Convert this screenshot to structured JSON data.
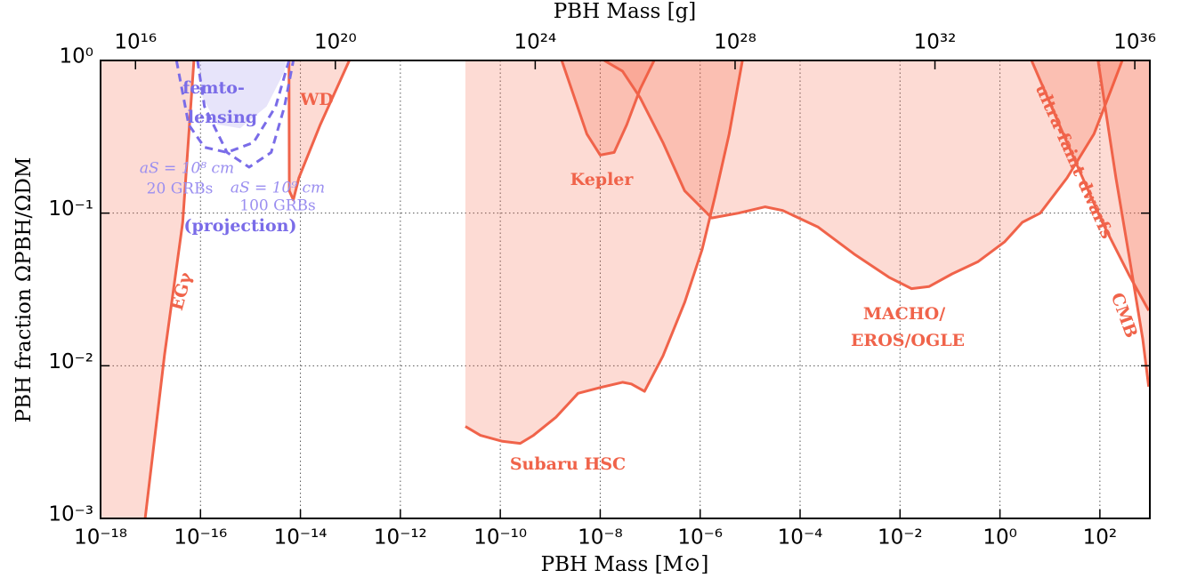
{
  "chart_data": {
    "type": "line",
    "xlabel": "PBH Mass [M⊙]",
    "x2label": "PBH Mass [g]",
    "ylabel": "PBH fraction ΩPBH/ΩDM",
    "xscale": "log",
    "yscale": "log",
    "grid": true,
    "xlim": [
      1e-18,
      1000.0
    ],
    "xticks": [
      {
        "value": 1e-18,
        "label": "10⁻¹⁸"
      },
      {
        "value": 1e-16,
        "label": "10⁻¹⁶"
      },
      {
        "value": 1e-14,
        "label": "10⁻¹⁴"
      },
      {
        "value": 1e-12,
        "label": "10⁻¹²"
      },
      {
        "value": 1e-10,
        "label": "10⁻¹⁰"
      },
      {
        "value": 1e-08,
        "label": "10⁻⁸"
      },
      {
        "value": 1e-06,
        "label": "10⁻⁶"
      },
      {
        "value": 0.0001,
        "label": "10⁻⁴"
      },
      {
        "value": 0.01,
        "label": "10⁻²"
      },
      {
        "value": 1,
        "label": "10⁰"
      },
      {
        "value": 100,
        "label": "10²"
      }
    ],
    "x2lim": [
      2000000000000000.0,
      2e+36
    ],
    "x2ticks": [
      {
        "value": 1e+16,
        "label": "10¹⁶"
      },
      {
        "value": 1e+20,
        "label": "10²⁰"
      },
      {
        "value": 1e+24,
        "label": "10²⁴"
      },
      {
        "value": 1e+28,
        "label": "10²⁸"
      },
      {
        "value": 1e+32,
        "label": "10³²"
      },
      {
        "value": 1e+36,
        "label": "10³⁶"
      }
    ],
    "ylim": [
      0.001,
      1
    ],
    "yticks": [
      {
        "value": 0.001,
        "label": "10⁻³"
      },
      {
        "value": 0.01,
        "label": "10⁻²"
      },
      {
        "value": 0.1,
        "label": "10⁻¹"
      },
      {
        "value": 1,
        "label": "10⁰"
      }
    ],
    "series": [
      {
        "color": "#f0634a",
        "fill": "#f4593d",
        "fill_to": "left",
        "line_style": "solid",
        "x": [
          7.8e-18,
          1.9e-17,
          4.4e-17,
          7.4e-17
        ],
        "values": [
          0.001,
          0.0117,
          0.087,
          1
        ]
      },
      {
        "color": "#f0634a",
        "fill": "#f4593d",
        "fill_to": "top",
        "line_style": "solid",
        "x": [
          5.9e-15,
          6e-15,
          7.2e-15,
          9.3e-15,
          2.5e-14,
          9.5e-14
        ],
        "values": [
          1,
          0.14,
          0.122,
          0.17,
          0.38,
          1
        ]
      },
      {
        "color": "#e8e6fb",
        "fill": "#cfcaf6",
        "fill_to": "top",
        "line_style": "none",
        "x": [
          8.7e-17,
          1.1e-16,
          2.2e-16,
          6.2e-16,
          2.1e-15,
          4.8e-15,
          5.2e-15
        ],
        "values": [
          1,
          0.57,
          0.38,
          0.36,
          0.5,
          0.85,
          1
        ]
      },
      {
        "color": "#7a6ce8",
        "line_style": "dashed",
        "x": [
          3.3e-17,
          5.8e-17,
          1.2e-16,
          3.4e-16,
          1.15e-15,
          3.2e-15,
          5.9e-15
        ],
        "values": [
          1,
          0.38,
          0.27,
          0.25,
          0.29,
          0.5,
          1
        ]
      },
      {
        "color": "#7a6ce8",
        "line_style": "dashed",
        "x": [
          8.7e-17,
          1.2e-16,
          3.4e-16,
          9.4e-16,
          2.6e-15,
          4.8e-15,
          7.2e-15
        ],
        "values": [
          1,
          0.5,
          0.25,
          0.2,
          0.25,
          0.5,
          1
        ]
      },
      {
        "color": "#f0634a",
        "fill": "#f4593d",
        "fill_to": "top",
        "line_style": "solid",
        "x": [
          2e-11,
          4e-11,
          1.1e-10,
          2.5e-10,
          4.6e-10,
          1.3e-09,
          3.6e-09,
          1e-08,
          2.8e-08,
          4.2e-08,
          7.7e-08,
          1.8e-07,
          4.9e-07,
          1.1e-06,
          2e-06,
          3.8e-06,
          7e-06
        ],
        "values": [
          0.004,
          0.0035,
          0.0032,
          0.0031,
          0.0035,
          0.0046,
          0.0066,
          0.0072,
          0.0078,
          0.0076,
          0.0068,
          0.0116,
          0.026,
          0.058,
          0.13,
          0.33,
          1
        ]
      },
      {
        "color": "#f0634a",
        "fill": "#f4593d",
        "fill_to": "top",
        "line_style": "solid",
        "x": [
          1.7e-09,
          5.4e-09,
          1e-08,
          1.9e-08,
          3.4e-08,
          6.3e-08,
          1.2e-07
        ],
        "values": [
          1,
          0.33,
          0.24,
          0.25,
          0.38,
          0.65,
          1
        ]
      },
      {
        "color": "#f0634a",
        "fill": "#f4593d",
        "fill_to": "top",
        "line_style": "solid",
        "x": [
          1.2e-08,
          2.8e-08,
          6.3e-08,
          1.8e-07,
          4.9e-07,
          1.7e-06,
          5.8e-06,
          2e-05,
          4.5e-05,
          0.00023,
          0.0012,
          0.006,
          0.017,
          0.038,
          0.11,
          0.36,
          1.25,
          2.8,
          6.4,
          22,
          76,
          170,
          280
        ],
        "values": [
          1,
          0.85,
          0.57,
          0.29,
          0.14,
          0.093,
          0.1,
          0.11,
          0.104,
          0.081,
          0.054,
          0.038,
          0.032,
          0.033,
          0.04,
          0.048,
          0.065,
          0.087,
          0.1,
          0.17,
          0.33,
          0.65,
          1
        ]
      },
      {
        "color": "#f0634a",
        "fill": "#f4593d",
        "fill_to": "right",
        "line_style": "solid",
        "x": [
          4.3,
          22,
          112,
          390,
          950
        ],
        "values": [
          1,
          0.29,
          0.087,
          0.039,
          0.023
        ]
      },
      {
        "color": "#f0634a",
        "fill": "#f4593d",
        "fill_to": "right",
        "line_style": "solid",
        "x": [
          92,
          210,
          390,
          720,
          950
        ],
        "values": [
          1,
          0.17,
          0.051,
          0.015,
          0.0073
        ]
      }
    ],
    "annotations": [
      {
        "text": "EGγ"
      },
      {
        "text": "WD"
      },
      {
        "text": "femto-"
      },
      {
        "text": "lensing"
      },
      {
        "text": "aS = 10⁸ cm"
      },
      {
        "text": "20 GRBs"
      },
      {
        "text": "aS = 10⁹ cm"
      },
      {
        "text": "100 GRBs"
      },
      {
        "text": "(projection)"
      },
      {
        "text": "Kepler"
      },
      {
        "text": "MACHO/"
      },
      {
        "text": "EROS/OGLE"
      },
      {
        "text": "Subaru HSC"
      },
      {
        "text": "ultra-faint dwarfs"
      },
      {
        "text": "CMB"
      }
    ]
  }
}
